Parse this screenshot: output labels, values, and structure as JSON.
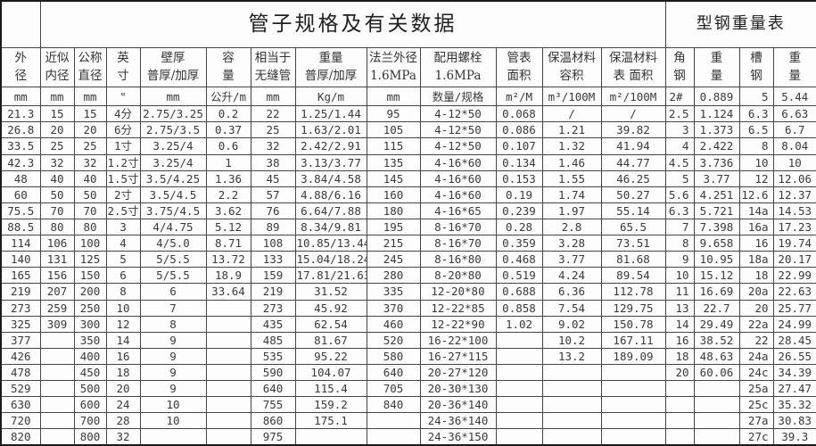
{
  "pipe_table_title": "管子规格及有关数据",
  "steel_table_title": "型钢重量表",
  "columns": [
    {
      "label": "外\n径",
      "unit": "mm"
    },
    {
      "label": "近似\n内径",
      "unit": "mm"
    },
    {
      "label": "公称\n直径",
      "unit": "mm"
    },
    {
      "label": "英\n寸",
      "unit": "\""
    },
    {
      "label": "壁厚\n普厚/加厚",
      "unit": "mm"
    },
    {
      "label": "容\n量",
      "unit": "公升/m"
    },
    {
      "label": "相当于\n无缝管",
      "unit": "mm"
    },
    {
      "label": "重量\n普厚/加厚",
      "unit": "Kg/m"
    },
    {
      "label": "法兰外径\n1.6MPa",
      "unit": "mm"
    },
    {
      "label": "配用螺栓\n1.6MPa",
      "unit": "数量/规格"
    },
    {
      "label": "管表\n面积",
      "unit": "m²/M"
    },
    {
      "label": "保温材料\n容积",
      "unit": "m³/100M"
    },
    {
      "label": "保温材料\n表 面积",
      "unit": "m²/100M"
    },
    {
      "label": "角\n钢",
      "unit": "2#"
    },
    {
      "label": "重\n量",
      "unit": "0.889"
    },
    {
      "label": "槽\n钢",
      "unit": "5"
    },
    {
      "label": "重\n量",
      "unit": "5.44"
    }
  ],
  "rows": [
    [
      "21.3",
      "15",
      "15",
      "4分",
      "2.75/3.25",
      "0.2",
      "22",
      "1.25/1.44",
      "95",
      "4-12*50",
      "0.068",
      "/",
      "/",
      "2.5",
      "1.124",
      "6.3",
      "6.63"
    ],
    [
      "26.8",
      "20",
      "20",
      "6分",
      "2.75/3.5",
      "0.37",
      "25",
      "1.63/2.01",
      "105",
      "4-12*50",
      "0.086",
      "1.21",
      "39.82",
      "3",
      "1.373",
      "6.5",
      "6.7"
    ],
    [
      "33.5",
      "25",
      "25",
      "1寸",
      "3.25/4",
      "0.6",
      "32",
      "2.42/2.91",
      "115",
      "4-12*50",
      "0.107",
      "1.32",
      "41.94",
      "4",
      "2.422",
      "8",
      "8.04"
    ],
    [
      "42.3",
      "32",
      "32",
      "1.2寸",
      "3.25/4",
      "1",
      "38",
      "3.13/3.77",
      "135",
      "4-16*60",
      "0.134",
      "1.46",
      "44.77",
      "4.5",
      "3.736",
      "10",
      "10"
    ],
    [
      "48",
      "40",
      "40",
      "1.5寸",
      "3.5/4.25",
      "1.36",
      "45",
      "3.84/4.58",
      "145",
      "4-16*60",
      "0.153",
      "1.55",
      "46.25",
      "5",
      "3.77",
      "12",
      "12.06"
    ],
    [
      "60",
      "50",
      "50",
      "2寸",
      "3.5/4.5",
      "2.2",
      "57",
      "4.88/6.16",
      "160",
      "4-16*60",
      "0.19",
      "1.74",
      "50.27",
      "5.6",
      "4.251",
      "12.6",
      "12.37"
    ],
    [
      "75.5",
      "70",
      "70",
      "2.5寸",
      "3.75/4.5",
      "3.62",
      "76",
      "6.64/7.88",
      "180",
      "4-16*65",
      "0.239",
      "1.97",
      "55.14",
      "6.3",
      "5.721",
      "14a",
      "14.53"
    ],
    [
      "88.5",
      "80",
      "80",
      "3",
      "4/4.75",
      "5.12",
      "89",
      "8.34/9.81",
      "195",
      "8-16*70",
      "0.28",
      "2.8",
      "65.5",
      "7",
      "7.398",
      "16a",
      "17.23"
    ],
    [
      "114",
      "106",
      "100",
      "4",
      "4/5.0",
      "8.71",
      "108",
      "10.85/13.44",
      "215",
      "8-16*70",
      "0.359",
      "3.28",
      "73.51",
      "8",
      "9.658",
      "16",
      "19.74"
    ],
    [
      "140",
      "131",
      "125",
      "5",
      "5/5.5",
      "13.72",
      "133",
      "15.04/18.24",
      "245",
      "8-16*80",
      "0.468",
      "3.77",
      "81.68",
      "9",
      "10.95",
      "18a",
      "20.17"
    ],
    [
      "165",
      "156",
      "150",
      "6",
      "5/5.5",
      "18.9",
      "159",
      "17.81/21.63",
      "280",
      "8-20*80",
      "0.519",
      "4.24",
      "89.54",
      "10",
      "15.12",
      "18",
      "22.99"
    ],
    [
      "219",
      "207",
      "200",
      "8",
      "6",
      "33.64",
      "219",
      "31.52",
      "335",
      "12-20*80",
      "0.688",
      "6.36",
      "112.78",
      "11",
      "16.69",
      "20a",
      "22.63"
    ],
    [
      "273",
      "259",
      "250",
      "10",
      "7",
      "",
      "273",
      "45.92",
      "370",
      "12-22*85",
      "0.858",
      "7.54",
      "129.75",
      "13",
      "22.7",
      "20",
      "25.77"
    ],
    [
      "325",
      "309",
      "300",
      "12",
      "8",
      "",
      "435",
      "62.54",
      "460",
      "12-22*90",
      "1.02",
      "9.02",
      "150.78",
      "14",
      "29.49",
      "22a",
      "24.99"
    ],
    [
      "377",
      "",
      "350",
      "14",
      "9",
      "",
      "485",
      "81.67",
      "520",
      "16-22*100",
      "",
      "10.2",
      "167.11",
      "16",
      "38.52",
      "22",
      "28.45"
    ],
    [
      "426",
      "",
      "400",
      "16",
      "9",
      "",
      "535",
      "95.22",
      "580",
      "16-27*115",
      "",
      "13.2",
      "189.09",
      "18",
      "48.63",
      "24a",
      "26.55"
    ],
    [
      "478",
      "",
      "450",
      "18",
      "9",
      "",
      "590",
      "104.07",
      "640",
      "20-27*120",
      "",
      "",
      "",
      "20",
      "60.06",
      "24c",
      "34.39"
    ],
    [
      "529",
      "",
      "500",
      "20",
      "9",
      "",
      "640",
      "115.4",
      "705",
      "20-30*130",
      "",
      "",
      "",
      "",
      "",
      "25a",
      "27.47"
    ],
    [
      "630",
      "",
      "600",
      "24",
      "10",
      "",
      "755",
      "159.2",
      "840",
      "20-36*140",
      "",
      "",
      "",
      "",
      "",
      "25c",
      "35.32"
    ],
    [
      "720",
      "",
      "700",
      "28",
      "10",
      "",
      "860",
      "175.1",
      "",
      "24-36*140",
      "",
      "",
      "",
      "",
      "",
      "27a",
      "30.83"
    ],
    [
      "820",
      "",
      "800",
      "32",
      "",
      "",
      "975",
      "",
      "",
      "24-36*150",
      "",
      "",
      "",
      "",
      "",
      "27c",
      "39.3"
    ]
  ]
}
